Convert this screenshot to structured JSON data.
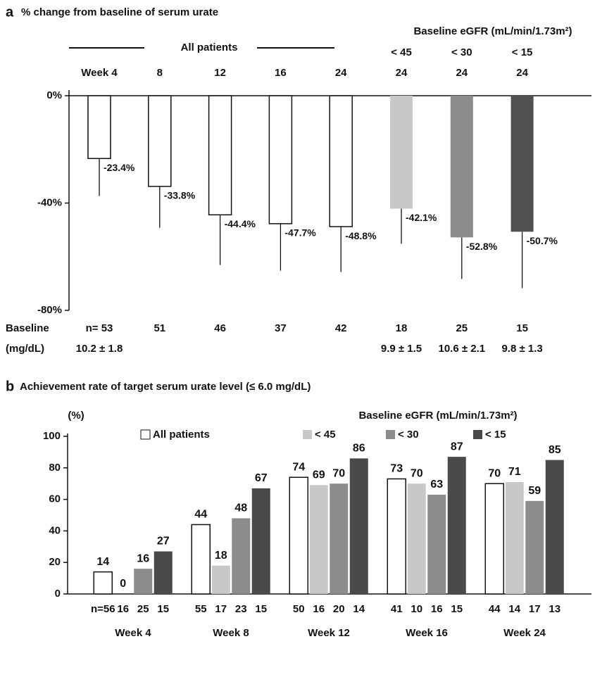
{
  "chart_data": [
    {
      "type": "bar",
      "panel_label": "a",
      "title": "% change from baseline of serum urate",
      "group_header": "All patients",
      "egfr_header": "Baseline eGFR (mL/min/1.73m²)",
      "categories": [
        "Week 4",
        "8",
        "12",
        "16",
        "24",
        "24",
        "24",
        "24"
      ],
      "subgroups": [
        null,
        null,
        null,
        null,
        null,
        "< 45",
        "< 30",
        "< 15"
      ],
      "values": [
        -23.4,
        -33.8,
        -44.4,
        -47.7,
        -48.8,
        -42.1,
        -52.8,
        -50.7
      ],
      "value_labels": [
        "-23.4%",
        "-33.8%",
        "-44.4%",
        "-47.7%",
        "-48.8%",
        "-42.1%",
        "-52.8%",
        "-50.7%"
      ],
      "errors": [
        14.0,
        15.4,
        18.7,
        17.5,
        16.9,
        13.1,
        15.5,
        21.0
      ],
      "colors": [
        "#ffffff",
        "#ffffff",
        "#ffffff",
        "#ffffff",
        "#ffffff",
        "#c8c8c8",
        "#8c8c8e",
        "#505052"
      ],
      "ylim": [
        -80,
        0
      ],
      "yticks": [
        {
          "value": 0,
          "label": "0%"
        },
        {
          "value": -40,
          "label": "-40%"
        },
        {
          "value": -80,
          "label": "-80%"
        }
      ],
      "baseline_label": [
        "Baseline",
        "(mg/dL)"
      ],
      "n_labels": [
        "n= 53",
        "51",
        "46",
        "37",
        "42",
        "18",
        "25",
        "15"
      ],
      "baseline_means": [
        "10.2 ± 1.8",
        null,
        null,
        null,
        null,
        "9.9 ± 1.5",
        "10.6 ± 2.1",
        "9.8 ± 1.3"
      ]
    },
    {
      "type": "grouped_bar",
      "panel_label": "b",
      "title": "Achievement rate of target serum urate level (≤ 6.0 mg/dL)",
      "ylabel": "(%)",
      "legend_title": "Baseline eGFR (mL/min/1.73m²)",
      "categories": [
        "Week 4",
        "Week 8",
        "Week 12",
        "Week 16",
        "Week 24"
      ],
      "series": [
        {
          "name": "All patients",
          "color": "#ffffff",
          "values": [
            14,
            44,
            74,
            73,
            70
          ],
          "n_labels": [
            "n=56",
            "55",
            "50",
            "41",
            "44"
          ]
        },
        {
          "name": "< 45",
          "color": "#c8c8c8",
          "values": [
            0,
            18,
            69,
            70,
            71
          ],
          "n_labels": [
            "16",
            "17",
            "16",
            "10",
            "14"
          ]
        },
        {
          "name": "< 30",
          "color": "#8c8c8e",
          "values": [
            16,
            48,
            70,
            63,
            59
          ],
          "n_labels": [
            "25",
            "23",
            "20",
            "16",
            "17"
          ]
        },
        {
          "name": "< 15",
          "color": "#4a4a4c",
          "values": [
            27,
            67,
            86,
            87,
            85
          ],
          "n_labels": [
            "15",
            "15",
            "14",
            "15",
            "13"
          ]
        }
      ],
      "ylim": [
        0,
        100
      ],
      "yticks": [
        0,
        20,
        40,
        60,
        80,
        100
      ]
    }
  ]
}
